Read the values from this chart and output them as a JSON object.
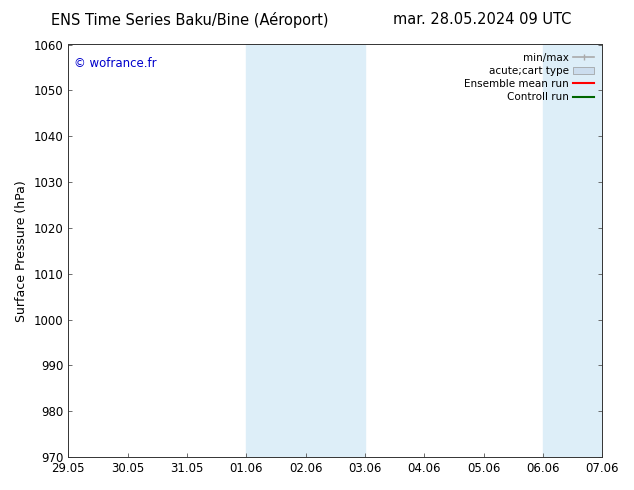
{
  "title_left": "ENS Time Series Baku/Bine (Aéroport)",
  "title_right": "mar. 28.05.2024 09 UTC",
  "ylabel": "Surface Pressure (hPa)",
  "ylim": [
    970,
    1060
  ],
  "yticks": [
    970,
    980,
    990,
    1000,
    1010,
    1020,
    1030,
    1040,
    1050,
    1060
  ],
  "xlabel_ticks": [
    "29.05",
    "30.05",
    "31.05",
    "01.06",
    "02.06",
    "03.06",
    "04.06",
    "05.06",
    "06.06",
    "07.06"
  ],
  "background_color": "#ffffff",
  "plot_bg_color": "#ffffff",
  "shaded_regions": [
    {
      "xstart": "01.06",
      "xend": "03.06",
      "color": "#ddeef8"
    },
    {
      "xstart": "06.06",
      "xend": "07.06",
      "color": "#ddeef8"
    }
  ],
  "watermark": "© wofrance.fr",
  "watermark_color": "#0000cc",
  "legend_entries": [
    {
      "label": "min/max",
      "color": "#aaaaaa",
      "lw": 1.2
    },
    {
      "label": "acute;cart type",
      "color": "#ccddee",
      "lw": 8
    },
    {
      "label": "Ensemble mean run",
      "color": "#ff0000",
      "lw": 1.5
    },
    {
      "label": "Controll run",
      "color": "#006600",
      "lw": 1.5
    }
  ],
  "title_fontsize": 10.5,
  "tick_fontsize": 8.5,
  "ylabel_fontsize": 9,
  "legend_fontsize": 7.5
}
